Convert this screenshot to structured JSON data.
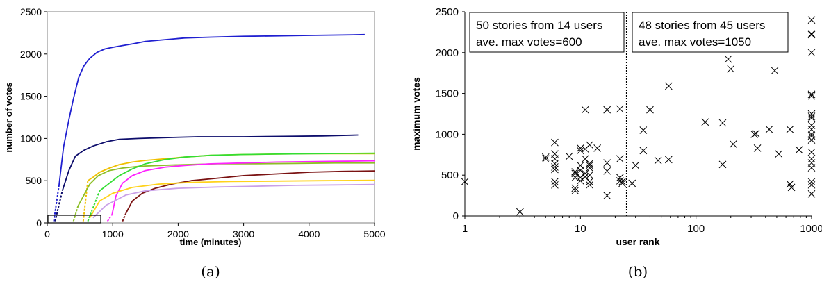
{
  "chart_data": [
    {
      "type": "line",
      "panel_label": "(a)",
      "xlabel": "time (minutes)",
      "ylabel": "number of votes",
      "xlim": [
        0,
        5000
      ],
      "ylim": [
        0,
        2500
      ],
      "xticks": [
        "0",
        "1000",
        "2000",
        "3000",
        "4000",
        "5000"
      ],
      "yticks": [
        "0",
        "500",
        "1000",
        "1500",
        "2000",
        "2500"
      ],
      "grid": false,
      "legend": "none",
      "series": [
        {
          "color": "#1f1fd0",
          "dashed_start": [
            [
              100,
              20
            ],
            [
              180,
              450
            ]
          ],
          "x": [
            180,
            250,
            330,
            400,
            480,
            560,
            650,
            760,
            880,
            1000,
            1150,
            1300,
            1500,
            1800,
            2100,
            2500,
            3000,
            3500,
            4000,
            4500,
            4850
          ],
          "y": [
            450,
            900,
            1220,
            1470,
            1720,
            1860,
            1950,
            2020,
            2060,
            2080,
            2100,
            2120,
            2150,
            2170,
            2190,
            2200,
            2210,
            2215,
            2220,
            2225,
            2230
          ]
        },
        {
          "color": "#0d0d6b",
          "dashed_start": [
            [
              120,
              20
            ],
            [
              230,
              380
            ]
          ],
          "x": [
            230,
            330,
            430,
            560,
            700,
            900,
            1100,
            1400,
            1800,
            2300,
            3000,
            3600,
            4200,
            4750
          ],
          "y": [
            380,
            620,
            790,
            860,
            910,
            960,
            990,
            1000,
            1010,
            1020,
            1020,
            1025,
            1030,
            1040
          ]
        },
        {
          "color": "#f0c000",
          "dashed_start": [
            [
              550,
              20
            ],
            [
              620,
              500
            ]
          ],
          "x": [
            620,
            700,
            800,
            950,
            1100,
            1300,
            1500,
            1800,
            2100,
            2500,
            3000,
            3500,
            4000,
            4500,
            5000
          ],
          "y": [
            500,
            540,
            600,
            650,
            690,
            720,
            740,
            760,
            780,
            800,
            810,
            815,
            820,
            820,
            820
          ]
        },
        {
          "color": "#8cbf26",
          "dashed_start": [
            [
              400,
              20
            ],
            [
              470,
              200
            ]
          ],
          "x": [
            470,
            560,
            650,
            780,
            950,
            1150,
            1400,
            1700,
            2100,
            2600,
            3200,
            3800,
            4400,
            5000
          ],
          "y": [
            200,
            330,
            460,
            560,
            620,
            650,
            670,
            680,
            690,
            700,
            700,
            705,
            710,
            710
          ]
        },
        {
          "color": "#33dd33",
          "dashed_start": [
            [
              620,
              20
            ],
            [
              800,
              380
            ]
          ],
          "x": [
            800,
            950,
            1100,
            1300,
            1500,
            1800,
            2100,
            2500,
            3000,
            3500,
            4000,
            4500,
            5000
          ],
          "y": [
            380,
            470,
            560,
            640,
            700,
            750,
            780,
            800,
            810,
            815,
            820,
            822,
            825
          ]
        },
        {
          "color": "#ff22ff",
          "dashed_start": [
            [
              920,
              20
            ],
            [
              990,
              100
            ]
          ],
          "x": [
            990,
            1050,
            1150,
            1300,
            1500,
            1800,
            2100,
            2500,
            3000,
            3500,
            4000,
            4500,
            5000
          ],
          "y": [
            100,
            320,
            470,
            560,
            620,
            660,
            680,
            700,
            710,
            720,
            725,
            730,
            735
          ]
        },
        {
          "color": "#7a1212",
          "dashed_start": [
            [
              1150,
              20
            ],
            [
              1200,
              110
            ]
          ],
          "x": [
            1200,
            1300,
            1450,
            1650,
            1900,
            2200,
            2600,
            3000,
            3500,
            4000,
            4500,
            5000
          ],
          "y": [
            110,
            260,
            350,
            410,
            460,
            500,
            530,
            560,
            580,
            600,
            610,
            615
          ]
        },
        {
          "color": "#ffd21a",
          "dashed_start": [],
          "x": [
            650,
            800,
            1000,
            1300,
            1700,
            2200,
            2800,
            3500,
            4200,
            5000
          ],
          "y": [
            60,
            260,
            350,
            420,
            460,
            480,
            490,
            495,
            500,
            505
          ]
        },
        {
          "color": "#c9a0e8",
          "dashed_start": [],
          "x": [
            700,
            900,
            1200,
            1500,
            2000,
            2600,
            3200,
            3800,
            4400,
            5000
          ],
          "y": [
            60,
            210,
            330,
            380,
            410,
            425,
            435,
            445,
            450,
            455
          ]
        }
      ]
    },
    {
      "type": "scatter",
      "panel_label": "(b)",
      "xlabel": "user rank",
      "ylabel": "maximum votes",
      "xscale": "log",
      "xlim": [
        1,
        1000
      ],
      "ylim": [
        0,
        2500
      ],
      "xticks": [
        "1",
        "10",
        "100",
        "1000"
      ],
      "yticks": [
        "0",
        "500",
        "1000",
        "1500",
        "2000",
        "2500"
      ],
      "marker": "x",
      "grid": false,
      "legend": "none",
      "divider_x": 25,
      "annotations": [
        {
          "lines": [
            "50 stories from 14 users",
            "ave. max votes=600"
          ]
        },
        {
          "lines": [
            "48 stories from 45 users",
            "ave. max votes=1050"
          ]
        }
      ],
      "points": [
        [
          1,
          420
        ],
        [
          3,
          50
        ],
        [
          5,
          720
        ],
        [
          5,
          700
        ],
        [
          6,
          900
        ],
        [
          6,
          760
        ],
        [
          6,
          700
        ],
        [
          6,
          640
        ],
        [
          6,
          600
        ],
        [
          6,
          570
        ],
        [
          6,
          420
        ],
        [
          6,
          380
        ],
        [
          8,
          730
        ],
        [
          9,
          540
        ],
        [
          9,
          520
        ],
        [
          9,
          470
        ],
        [
          9,
          340
        ],
        [
          9,
          310
        ],
        [
          10,
          830
        ],
        [
          10,
          800
        ],
        [
          10,
          620
        ],
        [
          10,
          560
        ],
        [
          10,
          470
        ],
        [
          10,
          430
        ],
        [
          11,
          1300
        ],
        [
          11,
          820
        ],
        [
          11,
          700
        ],
        [
          11,
          520
        ],
        [
          11,
          480
        ],
        [
          12,
          870
        ],
        [
          12,
          640
        ],
        [
          12,
          620
        ],
        [
          12,
          590
        ],
        [
          12,
          500
        ],
        [
          12,
          420
        ],
        [
          12,
          380
        ],
        [
          14,
          830
        ],
        [
          17,
          1300
        ],
        [
          17,
          650
        ],
        [
          17,
          550
        ],
        [
          17,
          250
        ],
        [
          22,
          1310
        ],
        [
          22,
          700
        ],
        [
          22,
          470
        ],
        [
          22,
          430
        ],
        [
          23,
          420
        ],
        [
          23,
          400
        ],
        [
          28,
          400
        ],
        [
          30,
          620
        ],
        [
          35,
          1050
        ],
        [
          35,
          800
        ],
        [
          40,
          1300
        ],
        [
          47,
          680
        ],
        [
          58,
          1590
        ],
        [
          58,
          690
        ],
        [
          120,
          1150
        ],
        [
          170,
          1140
        ],
        [
          170,
          630
        ],
        [
          190,
          1920
        ],
        [
          200,
          1800
        ],
        [
          210,
          880
        ],
        [
          320,
          1000
        ],
        [
          330,
          1010
        ],
        [
          340,
          830
        ],
        [
          430,
          1060
        ],
        [
          480,
          1780
        ],
        [
          520,
          760
        ],
        [
          650,
          1060
        ],
        [
          650,
          390
        ],
        [
          670,
          350
        ],
        [
          780,
          810
        ],
        [
          1000,
          2400
        ],
        [
          1000,
          2230
        ],
        [
          1000,
          2220
        ],
        [
          1000,
          2000
        ],
        [
          1000,
          1490
        ],
        [
          1000,
          1470
        ],
        [
          1000,
          1250
        ],
        [
          1000,
          1220
        ],
        [
          1000,
          1200
        ],
        [
          1000,
          1110
        ],
        [
          1000,
          1060
        ],
        [
          1000,
          1000
        ],
        [
          1000,
          980
        ],
        [
          1000,
          930
        ],
        [
          1000,
          780
        ],
        [
          1000,
          700
        ],
        [
          1000,
          650
        ],
        [
          1000,
          590
        ],
        [
          1000,
          420
        ],
        [
          1000,
          380
        ],
        [
          1000,
          270
        ]
      ]
    }
  ]
}
